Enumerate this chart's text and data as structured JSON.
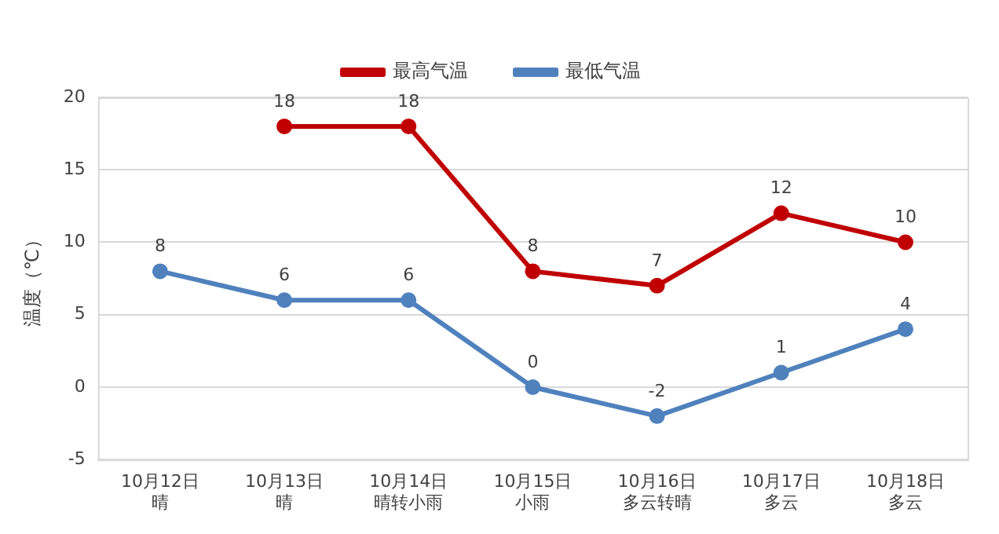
{
  "chart_data": {
    "type": "line",
    "ylabel": "温度（℃）",
    "categories": [
      "10月12日晴",
      "10月13日晴",
      "10月14日晴转小雨",
      "10月15日小雨",
      "10月16日多云转晴",
      "10月17日多云",
      "10月18日多云"
    ],
    "series": [
      {
        "name": "最高气温",
        "color": "#c00000",
        "values": [
          null,
          18,
          18,
          8,
          7,
          12,
          10
        ]
      },
      {
        "name": "最低气温",
        "color": "#4f81bd",
        "values": [
          8,
          6,
          6,
          0,
          -2,
          1,
          4
        ]
      }
    ],
    "ylim": [
      -5,
      20
    ],
    "yticks": [
      -5,
      0,
      5,
      10,
      15,
      20
    ],
    "grid": "y",
    "legend": "top",
    "marker": "circle",
    "line_style": "solid",
    "data_labels": true
  }
}
